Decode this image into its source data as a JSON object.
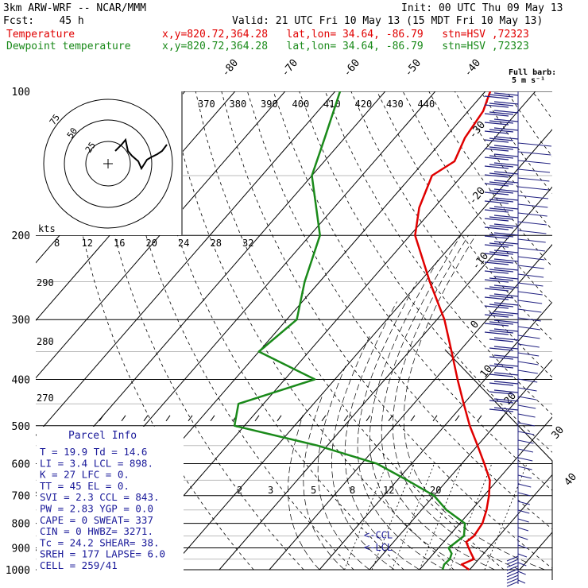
{
  "header": {
    "model": "3km ARW-WRF -- NCAR/MMM",
    "init": "Init: 00 UTC Thu 09 May 13",
    "fcst": "Fcst:    45 h",
    "valid": "Valid: 21 UTC Fri 10 May 13 (15 MDT Fri 10 May 13)",
    "temp_label": "Temperature",
    "temp_loc": "x,y=820.72,364.28   lat,lon= 34.64, -86.79   stn=HSV ,72323",
    "dew_label": "Dewpoint temperature",
    "dew_loc": "x,y=820.72,364.28   lat,lon= 34.64, -86.79   stn=HSV ,72323"
  },
  "colors": {
    "temperature": "#e00000",
    "dewpoint": "#1a8a1a",
    "text_blue": "#1a1a9a",
    "barb": "#202080"
  },
  "barb_key": {
    "title": "Full barb:",
    "value": "5 m s⁻¹"
  },
  "pressure_labels": [
    "100",
    "200",
    "300",
    "400",
    "500",
    "600",
    "700",
    "800",
    "900",
    "1000"
  ],
  "temp_labels": [
    "-80",
    "-70",
    "-60",
    "-50",
    "-40",
    "-30",
    "-20",
    "-10",
    "0",
    "10",
    "20",
    "30",
    "40"
  ],
  "theta_labels": [
    "370",
    "380",
    "390",
    "400",
    "410",
    "420",
    "430",
    "440"
  ],
  "theta_left": [
    "290",
    "280",
    "270"
  ],
  "mixing_labels": [
    "2",
    "3",
    "5",
    "8",
    "12",
    "20"
  ],
  "hodo": {
    "kts_label": "kts",
    "speed_labels": [
      "8",
      "12",
      "16",
      "20",
      "24",
      "28",
      "32"
    ],
    "ring_labels": [
      "75",
      "50",
      "25"
    ]
  },
  "parcel": {
    "title": "Parcel Info",
    "rows": [
      "T  =   19.9 Td =  14.6",
      "LI =    3.4 LCL =  898.",
      "K  =     27 LFC =    0.",
      "TT =     45 EL  =    0.",
      "SVI =   2.3 CCL =  843.",
      "PW =   2.83 YGP =   0.0",
      "CAPE =    0 SWEAT=  337",
      "CIN =     0 HWBZ= 3271.",
      "Tc =   24.2 SHEAR=  38.",
      "SREH =  177 LAPSE=  6.0",
      "CELL = 259/41"
    ]
  },
  "markers": {
    "ccl": "<-CCL",
    "lcl": "<-LCL"
  },
  "chart_data": {
    "type": "skew-t",
    "y_axis": "pressure (hPa)",
    "ylim": [
      1000,
      100
    ],
    "series": [
      {
        "name": "Temperature",
        "points": [
          [
            1000,
            19.9
          ],
          [
            975,
            17.5
          ],
          [
            950,
            19
          ],
          [
            925,
            17.5
          ],
          [
            900,
            16
          ],
          [
            875,
            14.5
          ],
          [
            850,
            15
          ],
          [
            800,
            14.5
          ],
          [
            750,
            13
          ],
          [
            700,
            11
          ],
          [
            650,
            8.5
          ],
          [
            600,
            4.5
          ],
          [
            550,
            0
          ],
          [
            500,
            -5
          ],
          [
            450,
            -10
          ],
          [
            400,
            -15.5
          ],
          [
            350,
            -21.5
          ],
          [
            300,
            -28.5
          ],
          [
            250,
            -38
          ],
          [
            200,
            -49
          ],
          [
            175,
            -53
          ],
          [
            150,
            -56
          ],
          [
            140,
            -54
          ],
          [
            125,
            -56
          ],
          [
            110,
            -57
          ],
          [
            100,
            -59
          ]
        ]
      },
      {
        "name": "Dewpoint temperature",
        "points": [
          [
            1000,
            14.6
          ],
          [
            975,
            14
          ],
          [
            950,
            14.2
          ],
          [
            925,
            13.6
          ],
          [
            900,
            12
          ],
          [
            875,
            12.5
          ],
          [
            850,
            13
          ],
          [
            800,
            11
          ],
          [
            750,
            5
          ],
          [
            700,
            0
          ],
          [
            650,
            -8
          ],
          [
            600,
            -17
          ],
          [
            550,
            -32
          ],
          [
            500,
            -52
          ],
          [
            450,
            -55
          ],
          [
            400,
            -44
          ],
          [
            350,
            -60
          ],
          [
            300,
            -58
          ],
          [
            250,
            -63
          ],
          [
            200,
            -68
          ],
          [
            150,
            -80
          ],
          [
            125,
            -84
          ],
          [
            100,
            -89
          ]
        ]
      }
    ],
    "annotations": {
      "LCL_hPa": 898,
      "CCL_hPa": 843
    }
  }
}
